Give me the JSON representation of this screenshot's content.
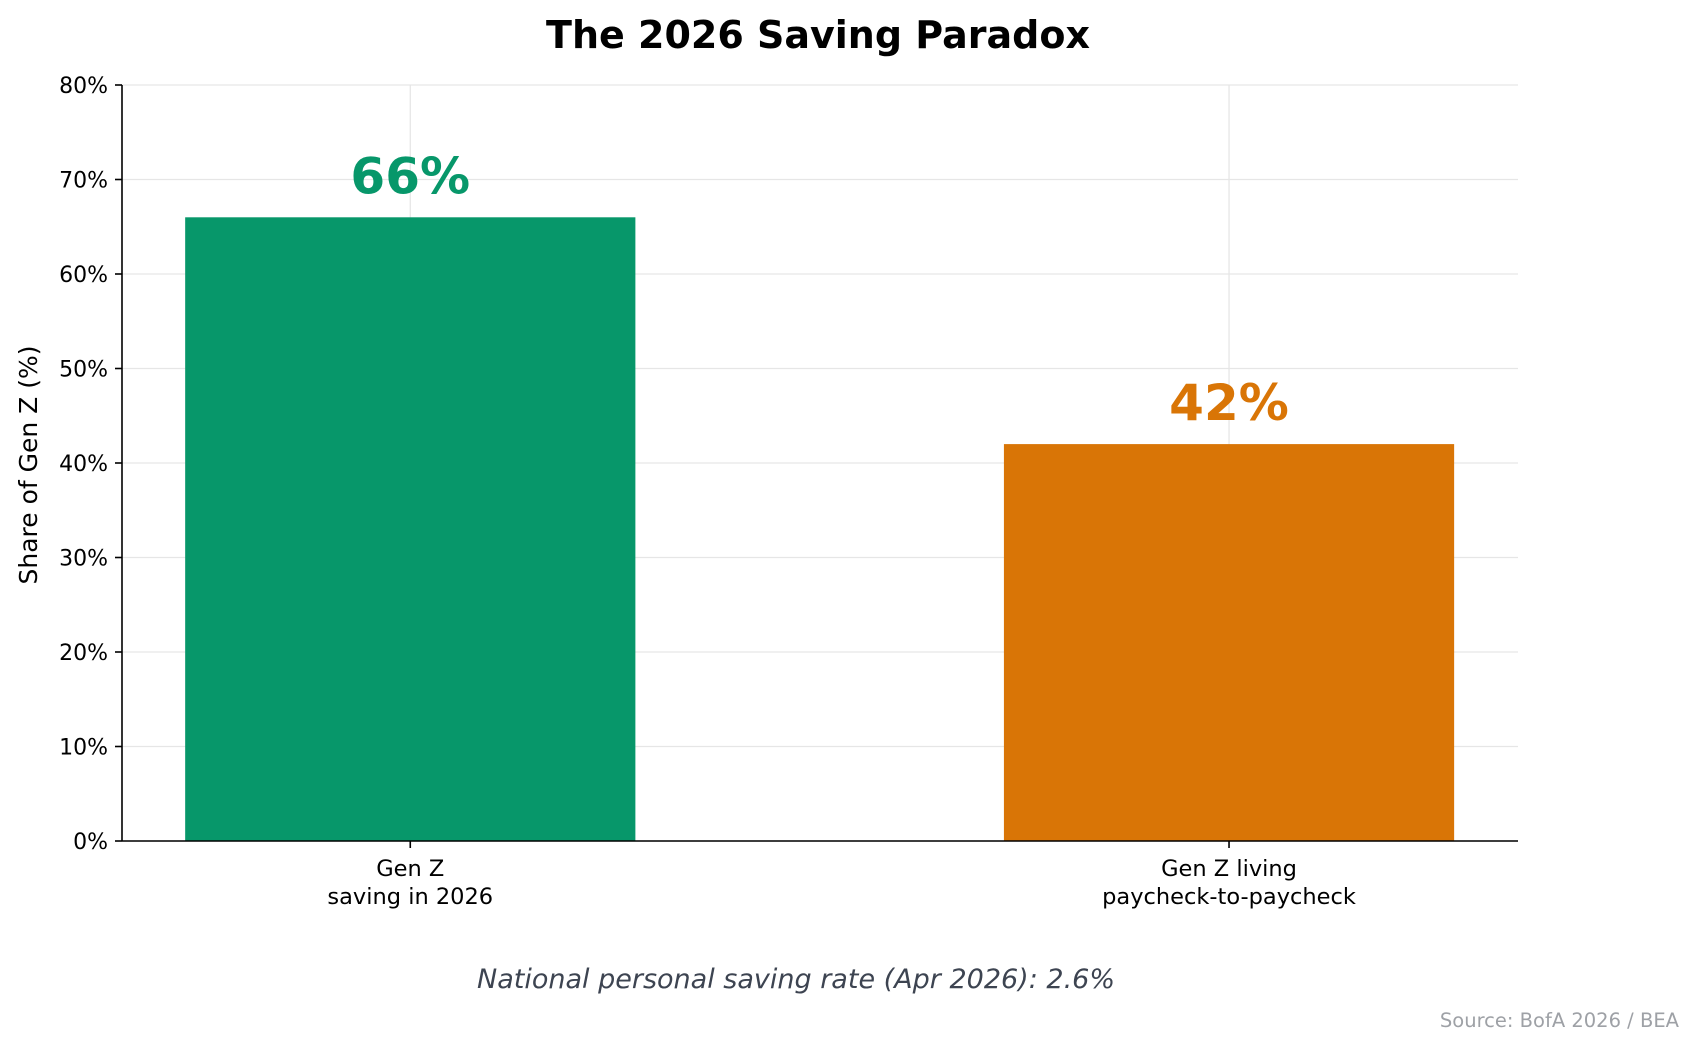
{
  "chart_data": {
    "type": "bar",
    "title": "The 2026 Saving Paradox",
    "xlabel": "",
    "ylabel": "Share of Gen Z (%)",
    "ylim": [
      0,
      80
    ],
    "y_ticks": [
      0,
      10,
      20,
      30,
      40,
      50,
      60,
      70,
      80
    ],
    "y_tick_labels": [
      "0%",
      "10%",
      "20%",
      "30%",
      "40%",
      "50%",
      "60%",
      "70%",
      "80%"
    ],
    "grid": true,
    "categories": [
      [
        "Gen Z",
        "saving in 2026"
      ],
      [
        "Gen Z living",
        "paycheck-to-paycheck"
      ]
    ],
    "values": [
      66,
      42
    ],
    "data_labels": [
      "66%",
      "42%"
    ],
    "colors": [
      "#07976a",
      "#d97506"
    ],
    "annotation": "National personal saving rate (Apr 2026): 2.6%",
    "source": "Source: BofA 2026 / BEA"
  }
}
